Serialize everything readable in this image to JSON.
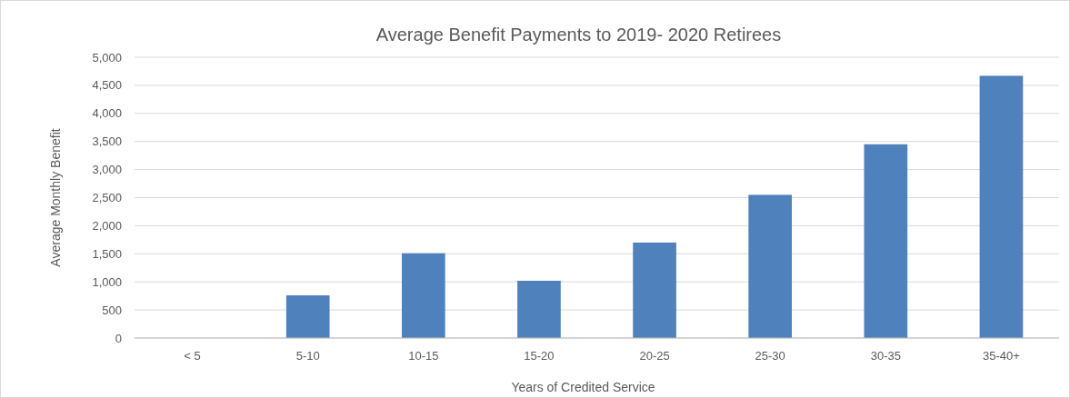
{
  "chart_data": {
    "type": "bar",
    "title": "Average Benefit Payments to 2019- 2020 Retirees",
    "xlabel": "Years of Credited Service",
    "ylabel": "Average Monthly Benefit",
    "categories": [
      "< 5",
      "5-10",
      "10-15",
      "15-20",
      "20-25",
      "25-30",
      "30-35",
      "35-40+"
    ],
    "values": [
      0,
      760,
      1510,
      1020,
      1700,
      2550,
      3450,
      4670
    ],
    "color": "#4f81bd",
    "ylim": [
      0,
      5000
    ],
    "yticks": [
      {
        "value": 0,
        "label": "0"
      },
      {
        "value": 500,
        "label": "500"
      },
      {
        "value": 1000,
        "label": "1,000"
      },
      {
        "value": 1500,
        "label": "1,500"
      },
      {
        "value": 2000,
        "label": "2,000"
      },
      {
        "value": 2500,
        "label": "2,500"
      },
      {
        "value": 3000,
        "label": "3,000"
      },
      {
        "value": 3500,
        "label": "3,500"
      },
      {
        "value": 4000,
        "label": "4,000"
      },
      {
        "value": 4500,
        "label": "4,500"
      },
      {
        "value": 5000,
        "label": "5,000"
      }
    ],
    "grid": "y"
  }
}
